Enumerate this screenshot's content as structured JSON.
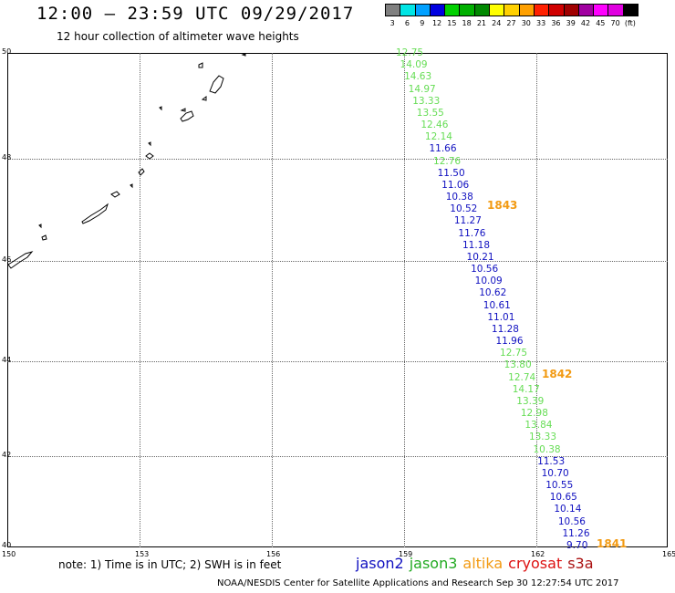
{
  "title": "12:00 – 23:59 UTC 09/29/2017",
  "subtitle": "12 hour collection of altimeter wave heights",
  "scale": {
    "colors": [
      "#808080",
      "#00e5e5",
      "#00a0ff",
      "#0000e0",
      "#00d000",
      "#00b000",
      "#008800",
      "#ffff00",
      "#ffd000",
      "#ffa000",
      "#ff2000",
      "#d00000",
      "#a00000",
      "#a000a0",
      "#ff00ff",
      "#e000e0",
      "#000000"
    ],
    "labels": [
      "3",
      "6",
      "9",
      "12",
      "15",
      "18",
      "21",
      "24",
      "27",
      "30",
      "33",
      "36",
      "39",
      "42",
      "45",
      "70",
      "(ft)"
    ]
  },
  "lat_labels": [
    "50",
    "48",
    "46",
    "44",
    "42",
    "40"
  ],
  "lon_labels": [
    "150",
    "153",
    "156",
    "159",
    "162",
    "165"
  ],
  "points": [
    {
      "v": "12.75",
      "c": "#66dd55"
    },
    {
      "v": "14.09",
      "c": "#66dd55"
    },
    {
      "v": "14.63",
      "c": "#66dd55"
    },
    {
      "v": "14.97",
      "c": "#66dd55"
    },
    {
      "v": "13.33",
      "c": "#66dd55"
    },
    {
      "v": "13.55",
      "c": "#66dd55"
    },
    {
      "v": "12.46",
      "c": "#66dd55"
    },
    {
      "v": "12.14",
      "c": "#66dd55"
    },
    {
      "v": "11.66",
      "c": "#1010c0"
    },
    {
      "v": "12.76",
      "c": "#66dd55"
    },
    {
      "v": "11.50",
      "c": "#1010c0"
    },
    {
      "v": "11.06",
      "c": "#1010c0"
    },
    {
      "v": "10.38",
      "c": "#1010c0"
    },
    {
      "v": "10.52",
      "c": "#1010c0"
    },
    {
      "v": "11.27",
      "c": "#1010c0"
    },
    {
      "v": "11.76",
      "c": "#1010c0"
    },
    {
      "v": "11.18",
      "c": "#1010c0"
    },
    {
      "v": "10.21",
      "c": "#1010c0"
    },
    {
      "v": "10.56",
      "c": "#1010c0"
    },
    {
      "v": "10.09",
      "c": "#1010c0"
    },
    {
      "v": "10.62",
      "c": "#1010c0"
    },
    {
      "v": "10.61",
      "c": "#1010c0"
    },
    {
      "v": "11.01",
      "c": "#1010c0"
    },
    {
      "v": "11.28",
      "c": "#1010c0"
    },
    {
      "v": "11.96",
      "c": "#1010c0"
    },
    {
      "v": "12.75",
      "c": "#66dd55"
    },
    {
      "v": "13.80",
      "c": "#66dd55"
    },
    {
      "v": "12.74",
      "c": "#66dd55"
    },
    {
      "v": "14.17",
      "c": "#66dd55"
    },
    {
      "v": "13.39",
      "c": "#66dd55"
    },
    {
      "v": "12.98",
      "c": "#66dd55"
    },
    {
      "v": "13.84",
      "c": "#66dd55"
    },
    {
      "v": "13.33",
      "c": "#66dd55"
    },
    {
      "v": "10.38",
      "c": "#66dd55"
    },
    {
      "v": "11.53",
      "c": "#1010c0"
    },
    {
      "v": "10.70",
      "c": "#1010c0"
    },
    {
      "v": "10.55",
      "c": "#1010c0"
    },
    {
      "v": "10.65",
      "c": "#1010c0"
    },
    {
      "v": "10.14",
      "c": "#1010c0"
    },
    {
      "v": "10.56",
      "c": "#1010c0"
    },
    {
      "v": "11.26",
      "c": "#1010c0"
    },
    {
      "v": "9.70",
      "c": "#1010c0"
    }
  ],
  "cycles": [
    "1843",
    "1842",
    "1841"
  ],
  "note": "note:  1) Time is in UTC;  2) SWH is in feet",
  "missions": [
    {
      "name": "jason2",
      "color": "#1010c0"
    },
    {
      "name": "jason3",
      "color": "#22aa22"
    },
    {
      "name": "altika",
      "color": "#f29a12"
    },
    {
      "name": "cryosat",
      "color": "#dd1111"
    },
    {
      "name": "s3a",
      "color": "#aa1111"
    }
  ],
  "footer": "NOAA/NESDIS Center for Satellite Applications and Research    Sep 30 12:27:54 UTC 2017"
}
